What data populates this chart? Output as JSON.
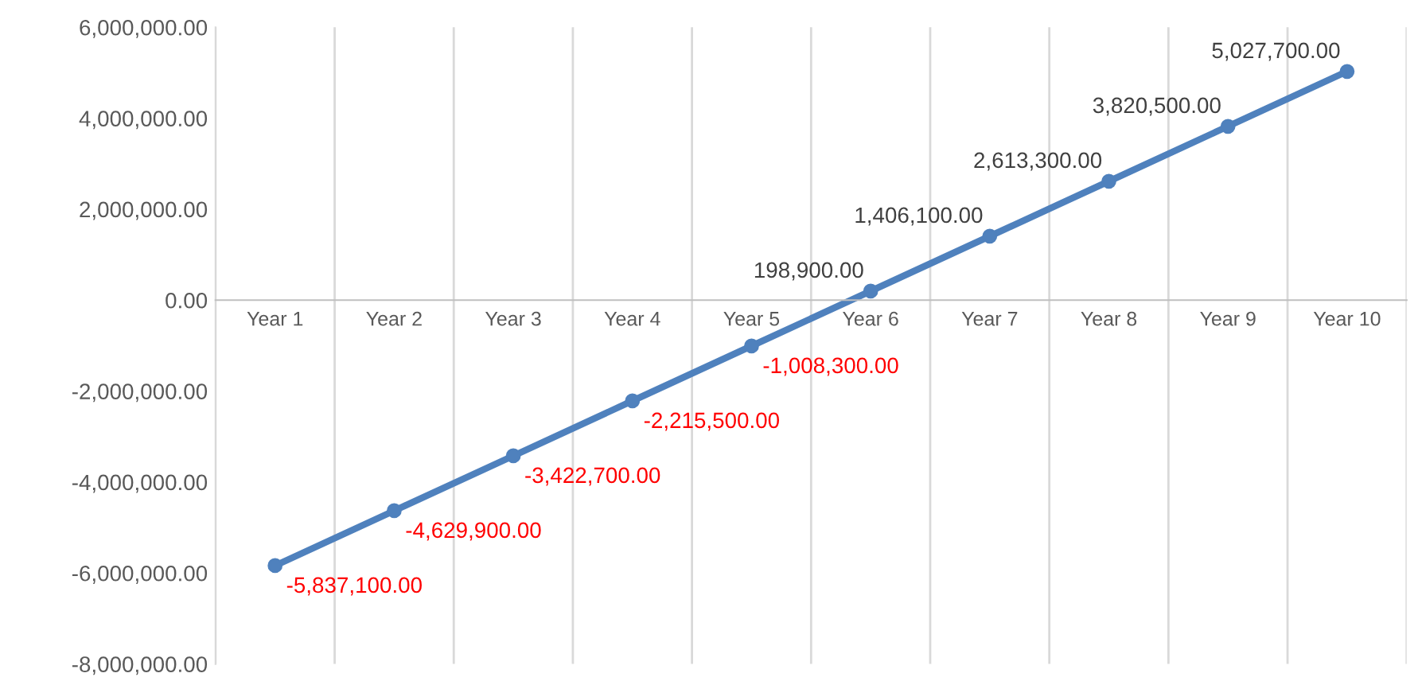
{
  "chart_data": {
    "type": "line",
    "categories": [
      "Year 1",
      "Year 2",
      "Year 3",
      "Year 4",
      "Year 5",
      "Year 6",
      "Year 7",
      "Year 8",
      "Year 9",
      "Year 10"
    ],
    "series": [
      {
        "color": "#4f81bd",
        "values": [
          -5837100,
          -4629900,
          -3422700,
          -2215500,
          -1008300,
          198900,
          1406100,
          2613300,
          3820500,
          5027700
        ],
        "value_labels": [
          "-5,837,100.00",
          "-4,629,900.00",
          "-3,422,700.00",
          "-2,215,500.00",
          "-1,008,300.00",
          "198,900.00",
          "1,406,100.00",
          "2,613,300.00",
          "3,820,500.00",
          "5,027,700.00"
        ]
      }
    ],
    "ylim": [
      -8000000,
      6000000
    ],
    "yticks": [
      {
        "value": -8000000,
        "label": "-8,000,000.00"
      },
      {
        "value": -6000000,
        "label": "-6,000,000.00"
      },
      {
        "value": -4000000,
        "label": "-4,000,000.00"
      },
      {
        "value": -2000000,
        "label": "-2,000,000.00"
      },
      {
        "value": 0,
        "label": "0.00"
      },
      {
        "value": 2000000,
        "label": "2,000,000.00"
      },
      {
        "value": 4000000,
        "label": "4,000,000.00"
      },
      {
        "value": 6000000,
        "label": "6,000,000.00"
      }
    ],
    "grid": "x",
    "marker": "circle",
    "line_style": "solid",
    "legend": false
  }
}
